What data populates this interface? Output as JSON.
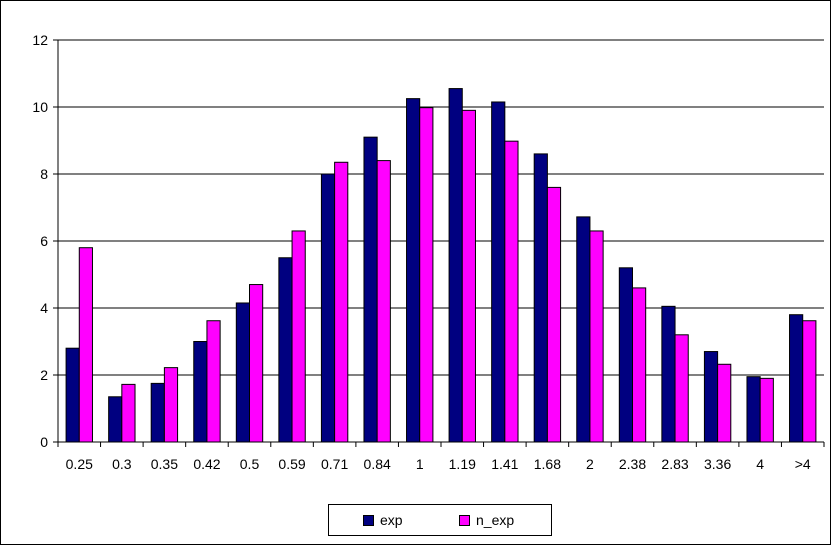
{
  "chart_data": {
    "type": "bar",
    "categories": [
      "0.25",
      "0.3",
      "0.35",
      "0.42",
      "0.5",
      "0.59",
      "0.71",
      "0.84",
      "1",
      "1.19",
      "1.41",
      "1.68",
      "2",
      "2.38",
      "2.83",
      "3.36",
      "4",
      ">4"
    ],
    "series": [
      {
        "name": "exp",
        "color": "#000080",
        "values": [
          2.8,
          1.35,
          1.75,
          3.0,
          4.15,
          5.5,
          8.0,
          9.1,
          10.25,
          10.55,
          10.15,
          8.6,
          6.72,
          5.2,
          4.05,
          2.7,
          1.95,
          3.8
        ]
      },
      {
        "name": "n_exp",
        "color": "#ff00ff",
        "values": [
          5.8,
          1.72,
          2.22,
          3.62,
          4.7,
          6.3,
          8.35,
          8.4,
          9.98,
          9.9,
          8.98,
          7.6,
          6.3,
          4.6,
          3.2,
          2.32,
          1.9,
          3.62
        ]
      }
    ],
    "ylim": [
      0,
      12
    ],
    "yticks": [
      0,
      2,
      4,
      6,
      8,
      10,
      12
    ],
    "grid": true,
    "legend_position": "bottom",
    "title": "",
    "xlabel": "",
    "ylabel": ""
  }
}
